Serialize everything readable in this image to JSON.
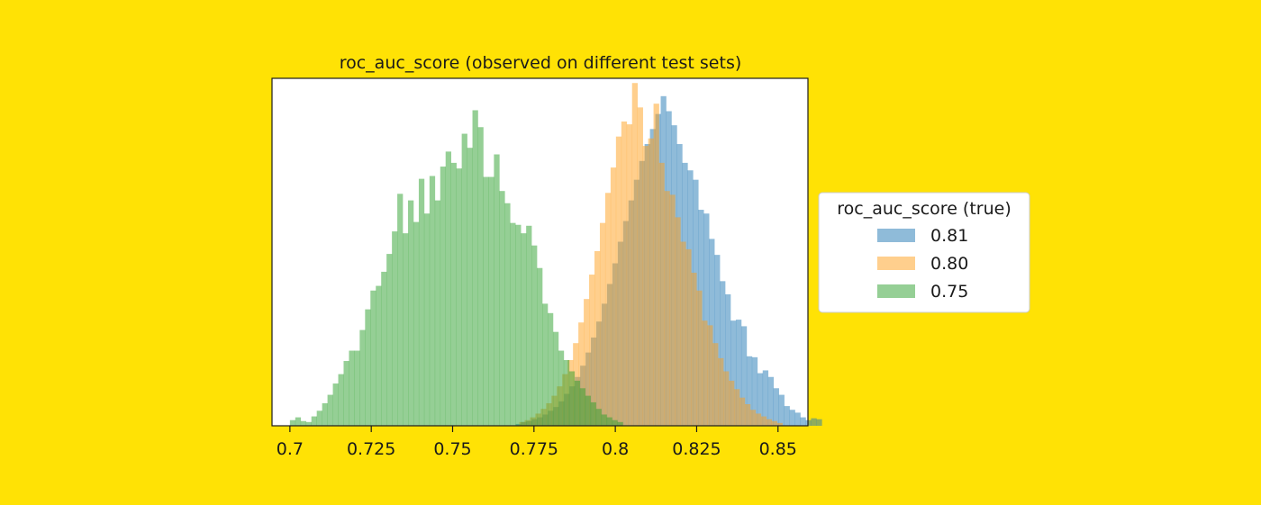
{
  "background_color": "#FFE205",
  "chart_data": {
    "type": "bar",
    "subtype": "overlapping-histogram",
    "title": "roc_auc_score (observed on different test sets)",
    "xlabel": "",
    "ylabel": "",
    "xlim": [
      0.6945,
      0.8592
    ],
    "ylim": [
      0,
      370
    ],
    "xticks": [
      0.7,
      0.725,
      0.75,
      0.775,
      0.8,
      0.825,
      0.85
    ],
    "xtick_labels": [
      "0.7",
      "0.725",
      "0.75",
      "0.775",
      "0.8",
      "0.825",
      "0.85"
    ],
    "grid": false,
    "y_axis_visible": false,
    "bin_width": 0.00165,
    "bar_alpha": 0.5,
    "legend": {
      "title": "roc_auc_score (true)",
      "placement": "outside-right"
    },
    "series": [
      {
        "name": "0.81",
        "color": "#1F77B4",
        "bin_start": 0.7694,
        "counts": [
          2,
          4,
          5,
          7,
          9,
          12,
          16,
          20,
          26,
          34,
          42,
          52,
          64,
          78,
          94,
          111,
          130,
          151,
          173,
          196,
          218,
          240,
          262,
          282,
          300,
          316,
          332,
          351,
          335,
          320,
          300,
          280,
          272,
          262,
          230,
          226,
          199,
          182,
          154,
          140,
          112,
          113,
          106,
          74,
          73,
          56,
          59,
          52,
          40,
          33,
          21,
          17,
          14,
          9,
          6,
          8,
          7
        ]
      },
      {
        "name": "0.80",
        "color": "#FF9F1C",
        "bin_start": 0.7705,
        "counts": [
          4,
          6,
          9,
          13,
          18,
          24,
          32,
          42,
          55,
          70,
          88,
          110,
          135,
          161,
          186,
          216,
          248,
          275,
          308,
          324,
          321,
          365,
          339,
          298,
          306,
          343,
          280,
          250,
          246,
          222,
          196,
          188,
          163,
          144,
          112,
          107,
          88,
          72,
          58,
          48,
          39,
          30,
          23,
          17,
          13,
          10,
          7,
          5,
          3
        ]
      },
      {
        "name": "0.75",
        "color": "#2CA02C",
        "bin_start": 0.7,
        "counts": [
          6,
          9,
          5,
          4,
          10,
          16,
          24,
          33,
          45,
          55,
          69,
          80,
          80,
          102,
          124,
          144,
          149,
          164,
          183,
          207,
          247,
          205,
          240,
          217,
          263,
          226,
          266,
          240,
          276,
          292,
          280,
          274,
          311,
          296,
          336,
          318,
          265,
          265,
          289,
          250,
          237,
          216,
          214,
          205,
          213,
          192,
          168,
          130,
          120,
          100,
          80,
          70,
          58,
          48,
          40,
          32,
          25,
          18,
          12,
          9,
          6,
          4
        ]
      }
    ]
  }
}
